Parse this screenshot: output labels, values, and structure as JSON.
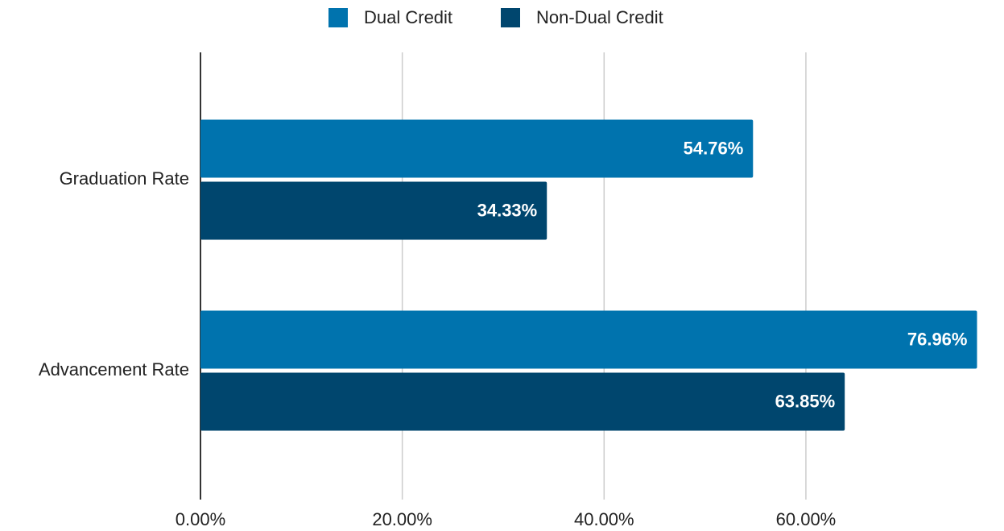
{
  "chart_data": {
    "type": "barh",
    "categories": [
      "Graduation Rate",
      "Advancement Rate"
    ],
    "series": [
      {
        "name": "Dual Credit",
        "color": "#0073ae",
        "values": [
          54.76,
          76.96
        ],
        "value_labels": [
          "54.76%",
          "76.96%"
        ]
      },
      {
        "name": "Non-Dual Credit",
        "color": "#00466e",
        "values": [
          34.33,
          63.85
        ],
        "value_labels": [
          "34.33%",
          "63.85%"
        ]
      }
    ],
    "xlim": [
      0,
      77
    ],
    "xticks": [
      {
        "value": 0,
        "label": "0.00%"
      },
      {
        "value": 20,
        "label": "20.00%"
      },
      {
        "value": 40,
        "label": "40.00%"
      },
      {
        "value": 60,
        "label": "60.00%"
      }
    ],
    "grid": true,
    "legend": "top"
  }
}
